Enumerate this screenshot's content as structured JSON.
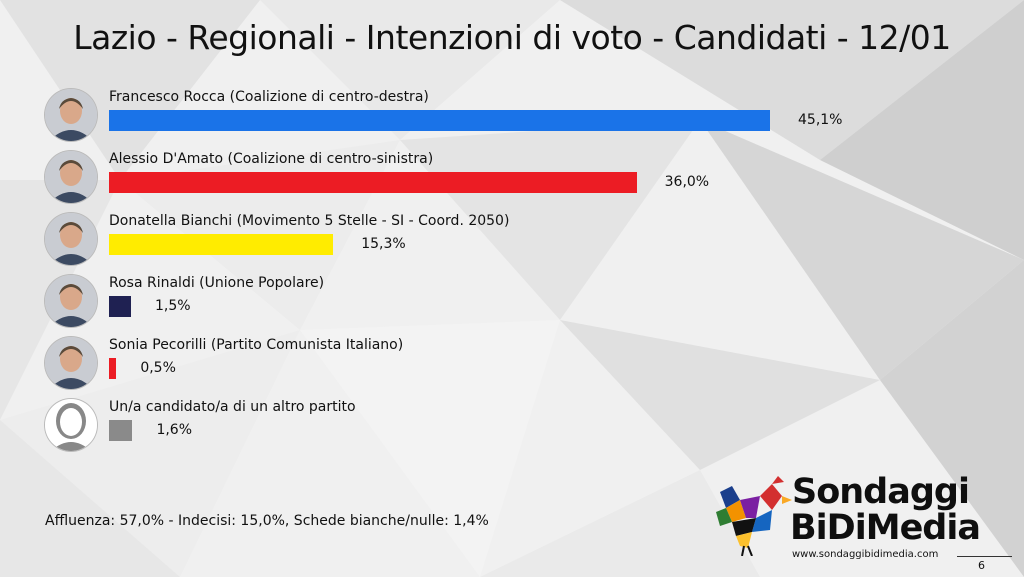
{
  "title": "Lazio - Regionali - Intenzioni di voto - Candidati - 12/01",
  "chart_data": {
    "type": "bar",
    "orientation": "horizontal",
    "categories": [
      "Francesco Rocca (Coalizione di centro-destra)",
      "Alessio D'Amato (Coalizione di centro-sinistra)",
      "Donatella Bianchi (Movimento 5 Stelle - SI - Coord. 2050)",
      "Rosa Rinaldi (Unione Popolare)",
      "Sonia Pecorilli (Partito Comunista Italiano)",
      "Un/a candidato/a di un altro partito"
    ],
    "values": [
      45.1,
      36.0,
      15.3,
      1.5,
      0.5,
      1.6
    ],
    "value_labels": [
      "45,1%",
      "36,0%",
      "15,3%",
      "1,5%",
      "0,5%",
      "1,6%"
    ],
    "colors": [
      "#1a73e8",
      "#ec1c24",
      "#ffec00",
      "#1f2152",
      "#ec1c24",
      "#8a8a8a"
    ],
    "xlim": [
      0,
      45.1
    ],
    "grid": false,
    "legend": "none"
  },
  "avatars": [
    "portrait-icon",
    "portrait-icon",
    "portrait-icon",
    "portrait-icon",
    "portrait-icon",
    "silhouette-icon"
  ],
  "footer_note": "Affluenza: 57,0% - Indecisi: 15,0%, Schede bianche/nulle: 1,4%",
  "brand": {
    "name_line1": "Sondaggi",
    "name_line2_a": "BiDi",
    "name_line2_b": "Media",
    "url": "www.sondaggibidimedia.com"
  },
  "page_number": "6"
}
